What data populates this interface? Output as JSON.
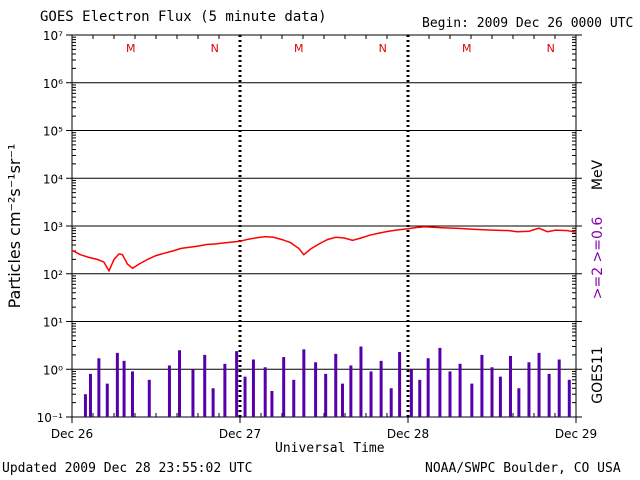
{
  "header": {
    "title": "GOES Electron Flux (5 minute data)",
    "begin": "Begin: 2009 Dec 26 0000 UTC"
  },
  "footer": {
    "updated": "Updated 2009 Dec 28 23:55:02 UTC",
    "credit": "NOAA/SWPC Boulder, CO USA"
  },
  "axes": {
    "xlabel": "Universal Time",
    "ylabel": "Particles cm⁻²s⁻¹sr⁻¹",
    "right_label_unit": "MeV",
    "right_label_series": ">=2 >=0.6",
    "right_label_sat": "GOES11"
  },
  "colors": {
    "flux_line": "#ff0000",
    "noise_bars": "#5500aa",
    "marker_text": "#dd0000",
    "right_series_label": "#8800aa"
  },
  "chart_data": {
    "type": "line",
    "xlabel": "Universal Time",
    "ylabel": "Particles cm^-2 s^-1 sr^-1",
    "x_ticks": [
      "Dec 26",
      "Dec 27",
      "Dec 28",
      "Dec 29"
    ],
    "x_range_days": [
      0,
      3
    ],
    "y_scale": "log",
    "ylim": [
      0.1,
      10000000
    ],
    "y_ticks": [
      "10⁻¹",
      "10⁰",
      "10¹",
      "10²",
      "10³",
      "10⁴",
      "10⁵",
      "10⁶",
      "10⁷"
    ],
    "threshold": 1000,
    "day_markers": [
      {
        "label": "M",
        "x": 0.35
      },
      {
        "label": "N",
        "x": 0.85
      },
      {
        "label": "M",
        "x": 1.35
      },
      {
        "label": "N",
        "x": 1.85
      },
      {
        "label": "M",
        "x": 2.35
      },
      {
        "label": "N",
        "x": 2.85
      }
    ],
    "series": [
      {
        "name": ">=2 MeV",
        "points": [
          [
            0.0,
            310
          ],
          [
            0.05,
            250
          ],
          [
            0.1,
            220
          ],
          [
            0.15,
            200
          ],
          [
            0.19,
            175
          ],
          [
            0.22,
            115
          ],
          [
            0.25,
            200
          ],
          [
            0.28,
            260
          ],
          [
            0.3,
            250
          ],
          [
            0.33,
            160
          ],
          [
            0.36,
            130
          ],
          [
            0.4,
            160
          ],
          [
            0.45,
            200
          ],
          [
            0.5,
            240
          ],
          [
            0.55,
            270
          ],
          [
            0.6,
            300
          ],
          [
            0.65,
            340
          ],
          [
            0.7,
            360
          ],
          [
            0.75,
            380
          ],
          [
            0.8,
            410
          ],
          [
            0.85,
            420
          ],
          [
            0.9,
            440
          ],
          [
            0.95,
            460
          ],
          [
            1.0,
            480
          ],
          [
            1.05,
            530
          ],
          [
            1.1,
            570
          ],
          [
            1.15,
            600
          ],
          [
            1.2,
            580
          ],
          [
            1.25,
            520
          ],
          [
            1.3,
            450
          ],
          [
            1.35,
            340
          ],
          [
            1.38,
            250
          ],
          [
            1.42,
            330
          ],
          [
            1.47,
            420
          ],
          [
            1.52,
            520
          ],
          [
            1.57,
            580
          ],
          [
            1.62,
            560
          ],
          [
            1.67,
            500
          ],
          [
            1.72,
            560
          ],
          [
            1.77,
            640
          ],
          [
            1.82,
            700
          ],
          [
            1.88,
            770
          ],
          [
            1.94,
            830
          ],
          [
            2.0,
            880
          ],
          [
            2.05,
            930
          ],
          [
            2.1,
            960
          ],
          [
            2.2,
            920
          ],
          [
            2.3,
            890
          ],
          [
            2.4,
            850
          ],
          [
            2.5,
            820
          ],
          [
            2.6,
            800
          ],
          [
            2.65,
            760
          ],
          [
            2.72,
            780
          ],
          [
            2.78,
            900
          ],
          [
            2.83,
            760
          ],
          [
            2.88,
            820
          ],
          [
            2.95,
            800
          ],
          [
            3.0,
            740
          ]
        ]
      },
      {
        "name": ">=0.6 MeV",
        "bars": [
          [
            0.08,
            0.3
          ],
          [
            0.11,
            0.8
          ],
          [
            0.16,
            1.7
          ],
          [
            0.21,
            0.5
          ],
          [
            0.27,
            2.2
          ],
          [
            0.31,
            1.5
          ],
          [
            0.36,
            0.9
          ],
          [
            0.46,
            0.6
          ],
          [
            0.58,
            1.2
          ],
          [
            0.64,
            2.5
          ],
          [
            0.72,
            1.0
          ],
          [
            0.79,
            2.0
          ],
          [
            0.84,
            0.4
          ],
          [
            0.91,
            1.3
          ],
          [
            0.98,
            2.4
          ],
          [
            1.03,
            0.7
          ],
          [
            1.08,
            1.6
          ],
          [
            1.15,
            1.1
          ],
          [
            1.19,
            0.35
          ],
          [
            1.26,
            1.8
          ],
          [
            1.32,
            0.6
          ],
          [
            1.38,
            2.6
          ],
          [
            1.45,
            1.4
          ],
          [
            1.51,
            0.8
          ],
          [
            1.57,
            2.1
          ],
          [
            1.61,
            0.5
          ],
          [
            1.66,
            1.2
          ],
          [
            1.72,
            3.0
          ],
          [
            1.78,
            0.9
          ],
          [
            1.84,
            1.5
          ],
          [
            1.9,
            0.4
          ],
          [
            1.95,
            2.3
          ],
          [
            2.02,
            1.0
          ],
          [
            2.07,
            0.6
          ],
          [
            2.12,
            1.7
          ],
          [
            2.19,
            2.8
          ],
          [
            2.25,
            0.9
          ],
          [
            2.31,
            1.3
          ],
          [
            2.38,
            0.5
          ],
          [
            2.44,
            2.0
          ],
          [
            2.5,
            1.1
          ],
          [
            2.55,
            0.7
          ],
          [
            2.61,
            1.9
          ],
          [
            2.66,
            0.4
          ],
          [
            2.72,
            1.4
          ],
          [
            2.78,
            2.2
          ],
          [
            2.84,
            0.8
          ],
          [
            2.9,
            1.6
          ],
          [
            2.96,
            0.6
          ]
        ]
      }
    ]
  }
}
